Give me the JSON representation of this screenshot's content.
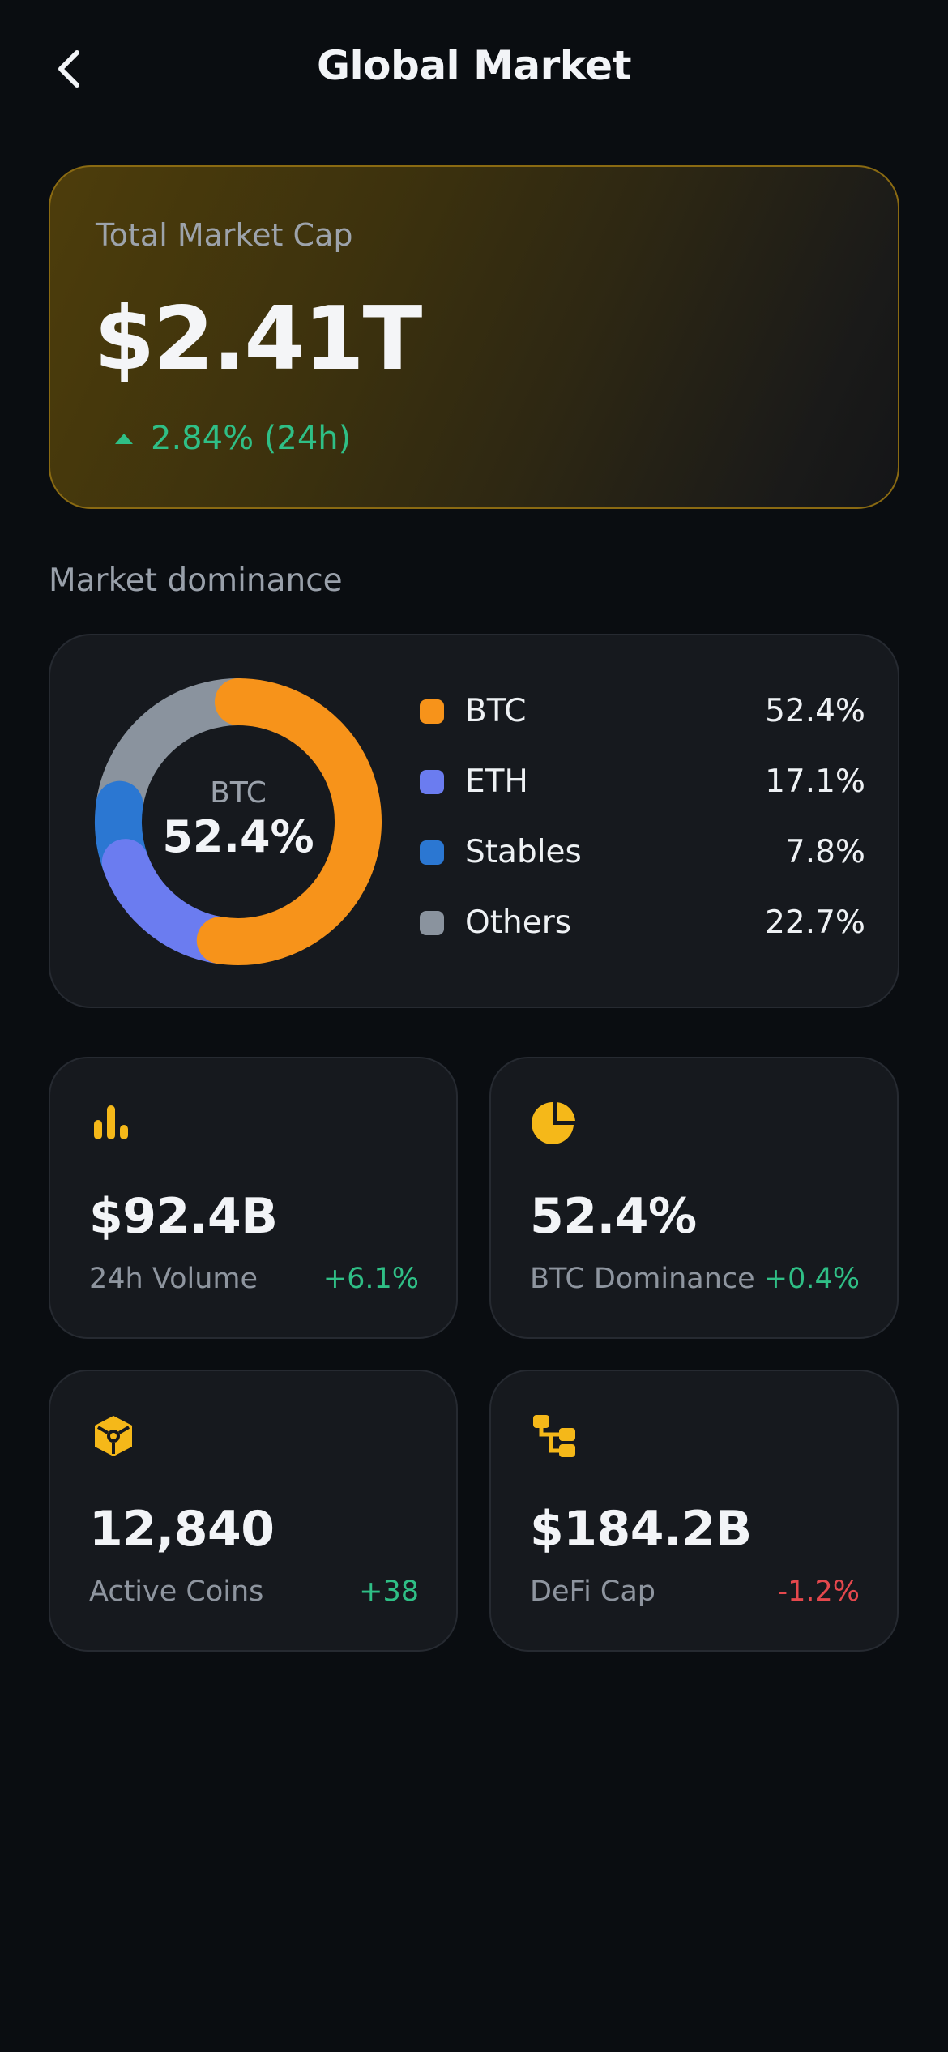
{
  "header": {
    "title": "Global Market",
    "back_icon": "chevron-left-icon"
  },
  "market_cap": {
    "label": "Total Market Cap",
    "value": "$2.41T",
    "change": "2.84% (24h)",
    "change_direction": "up",
    "change_color": "#2fbf86"
  },
  "dominance": {
    "section_title": "Market dominance",
    "center_label": "BTC",
    "center_value": "52.4%",
    "items": [
      {
        "name": "BTC",
        "percent_label": "52.4%",
        "percent": 52.4,
        "color": "#f7931a"
      },
      {
        "name": "ETH",
        "percent_label": "17.1%",
        "percent": 17.1,
        "color": "#6b7cf0"
      },
      {
        "name": "Stables",
        "percent_label": "7.8%",
        "percent": 7.8,
        "color": "#2b77d2"
      },
      {
        "name": "Others",
        "percent_label": "22.7%",
        "percent": 22.7,
        "color": "#8a939e"
      }
    ]
  },
  "stats": [
    {
      "icon": "bar-chart-icon",
      "value": "$92.4B",
      "label": "24h Volume",
      "change": "+6.1%",
      "trend": "positive"
    },
    {
      "icon": "pie-chart-icon",
      "value": "52.4%",
      "label": "BTC Dominance",
      "change": "+0.4%",
      "trend": "positive"
    },
    {
      "icon": "cube-icon",
      "value": "12,840",
      "label": "Active Coins",
      "change": "+38",
      "trend": "positive"
    },
    {
      "icon": "network-icon",
      "value": "$184.2B",
      "label": "DeFi Cap",
      "change": "-1.2%",
      "trend": "negative"
    }
  ],
  "colors": {
    "accent": "#f5b819",
    "positive": "#2fbf86",
    "negative": "#e5484d",
    "background": "#0a0d11",
    "card": "#16191e"
  }
}
